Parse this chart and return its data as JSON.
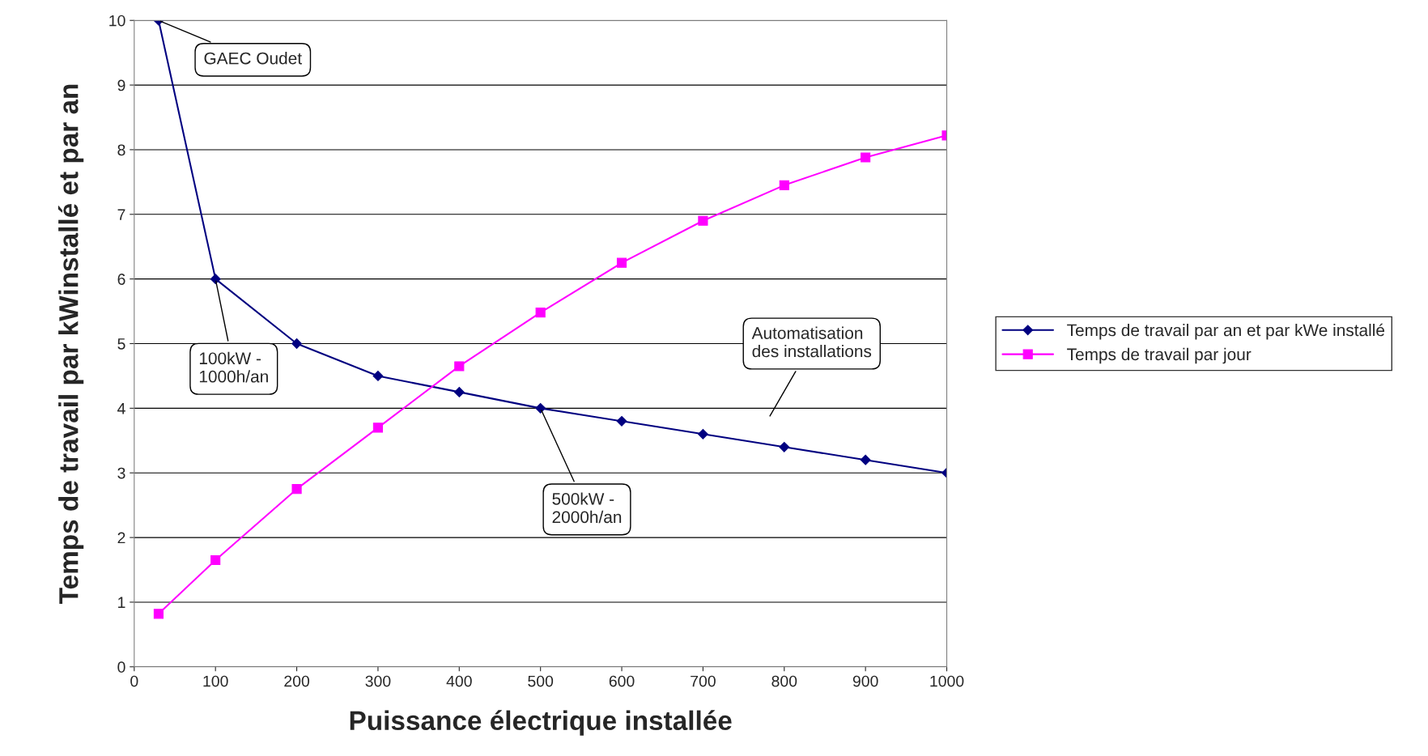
{
  "chart_data": {
    "type": "line",
    "xlabel": "Puissance électrique installée",
    "ylabel": "Temps de travail par kWinstallé et par an",
    "x": [
      30,
      100,
      200,
      300,
      400,
      500,
      600,
      700,
      800,
      900,
      1000
    ],
    "series": [
      {
        "name": "Temps de travail par an et par kWe installé",
        "color": "#000080",
        "marker": "diamond",
        "values": [
          10,
          6,
          5,
          4.5,
          4.25,
          4,
          3.8,
          3.6,
          3.4,
          3.2,
          3
        ]
      },
      {
        "name": "Temps de travail par jour",
        "color": "#ff00ff",
        "marker": "square",
        "values": [
          0.82,
          1.65,
          2.75,
          3.7,
          4.65,
          5.48,
          6.25,
          6.9,
          7.45,
          7.88,
          8.22
        ]
      }
    ],
    "xlim": [
      0,
      1000
    ],
    "xticks": [
      0,
      100,
      200,
      300,
      400,
      500,
      600,
      700,
      800,
      900,
      1000
    ],
    "ylim": [
      0,
      10
    ],
    "yticks": [
      0,
      1,
      2,
      3,
      4,
      5,
      6,
      7,
      8,
      9,
      10
    ],
    "grid": "y",
    "legend": "right",
    "line_style": "solid",
    "annotations": [
      {
        "text": "GAEC Oudet",
        "x": 30,
        "y": 10
      },
      {
        "text": "100kW -\n1000h/an",
        "x": 100,
        "y": 6
      },
      {
        "text": "500kW -\n2000h/an",
        "x": 500,
        "y": 4
      },
      "Automatisation\ndes installations"
    ]
  }
}
